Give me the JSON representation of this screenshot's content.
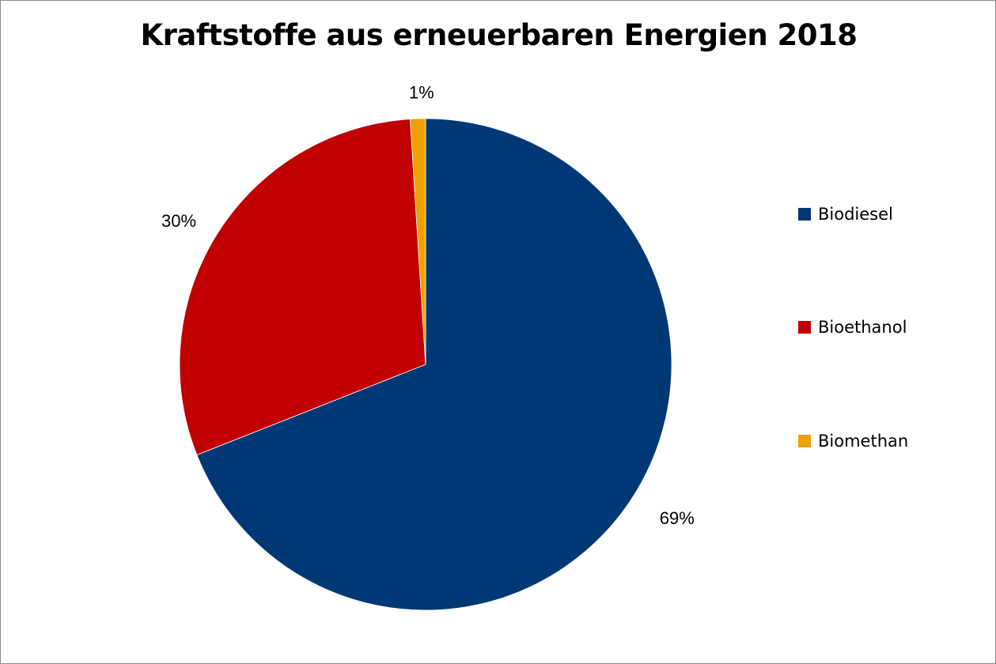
{
  "chart_data": {
    "type": "pie",
    "title": "Kraftstoffe aus erneuerbaren Energien 2018",
    "categories": [
      "Biodiesel",
      "Bioethanol",
      "Biomethan"
    ],
    "values": [
      69,
      30,
      1
    ],
    "data_labels": [
      "69%",
      "30%",
      "1%"
    ],
    "colors": [
      "#003876",
      "#C00000",
      "#EDA200"
    ],
    "legend_position": "right",
    "start_angle": "top, clockwise"
  }
}
